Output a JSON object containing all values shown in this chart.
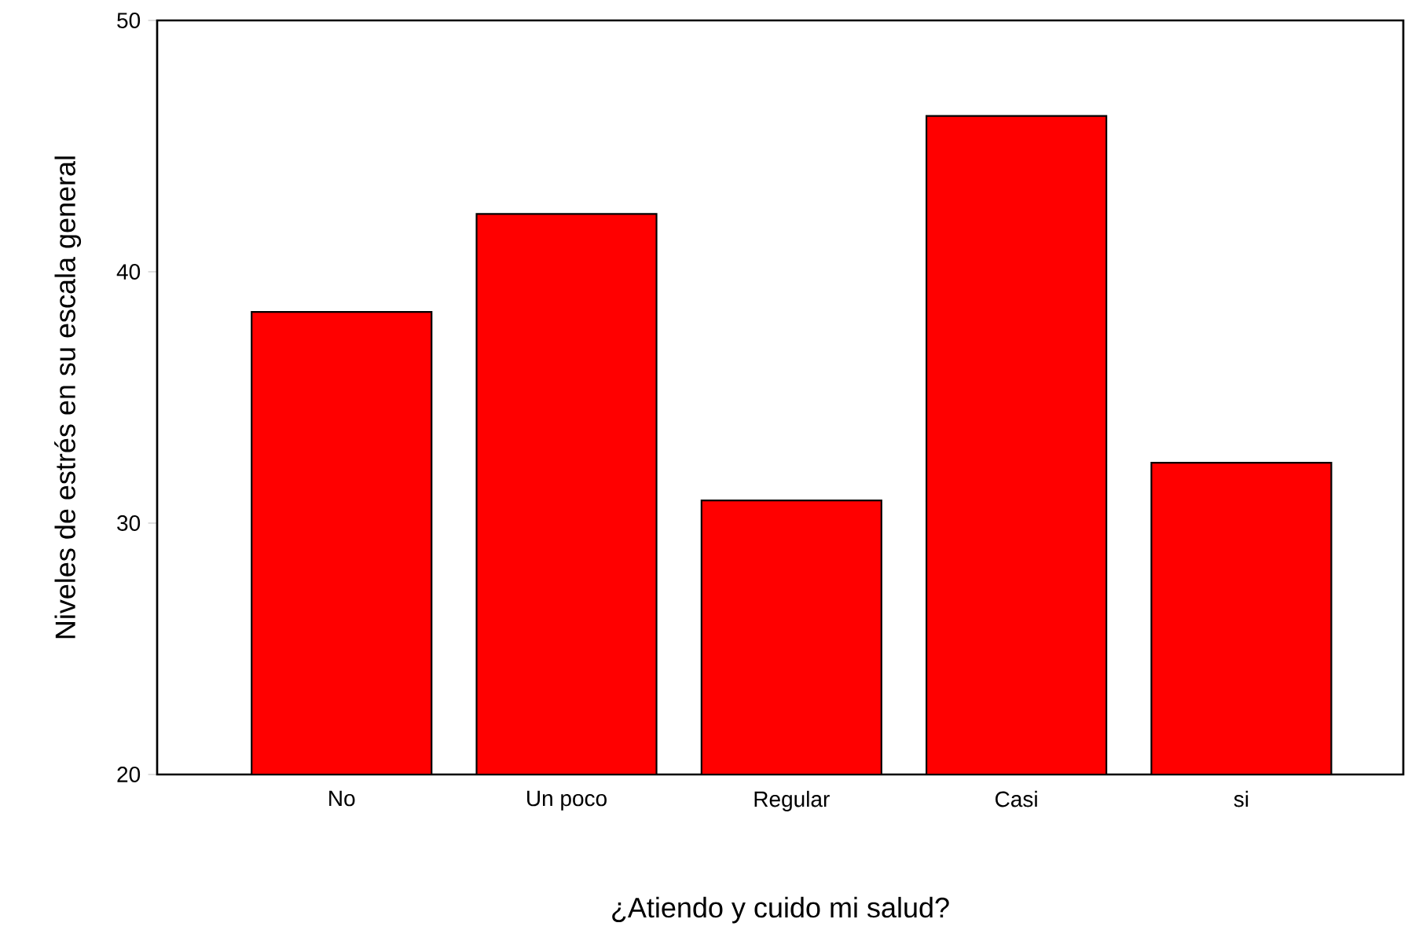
{
  "chart_data": {
    "type": "bar",
    "xlabel": "¿Atiendo y cuido mi salud?",
    "ylabel": "Niveles de estrés en su escala general",
    "categories": [
      "No",
      "Un poco",
      "Regular",
      "Casi",
      "si"
    ],
    "values": [
      38.4,
      42.3,
      30.9,
      46.2,
      32.4
    ],
    "color": "#ff0000",
    "ylim": [
      20,
      50
    ],
    "yticks": [
      20,
      30,
      40,
      50
    ],
    "grid": false
  }
}
